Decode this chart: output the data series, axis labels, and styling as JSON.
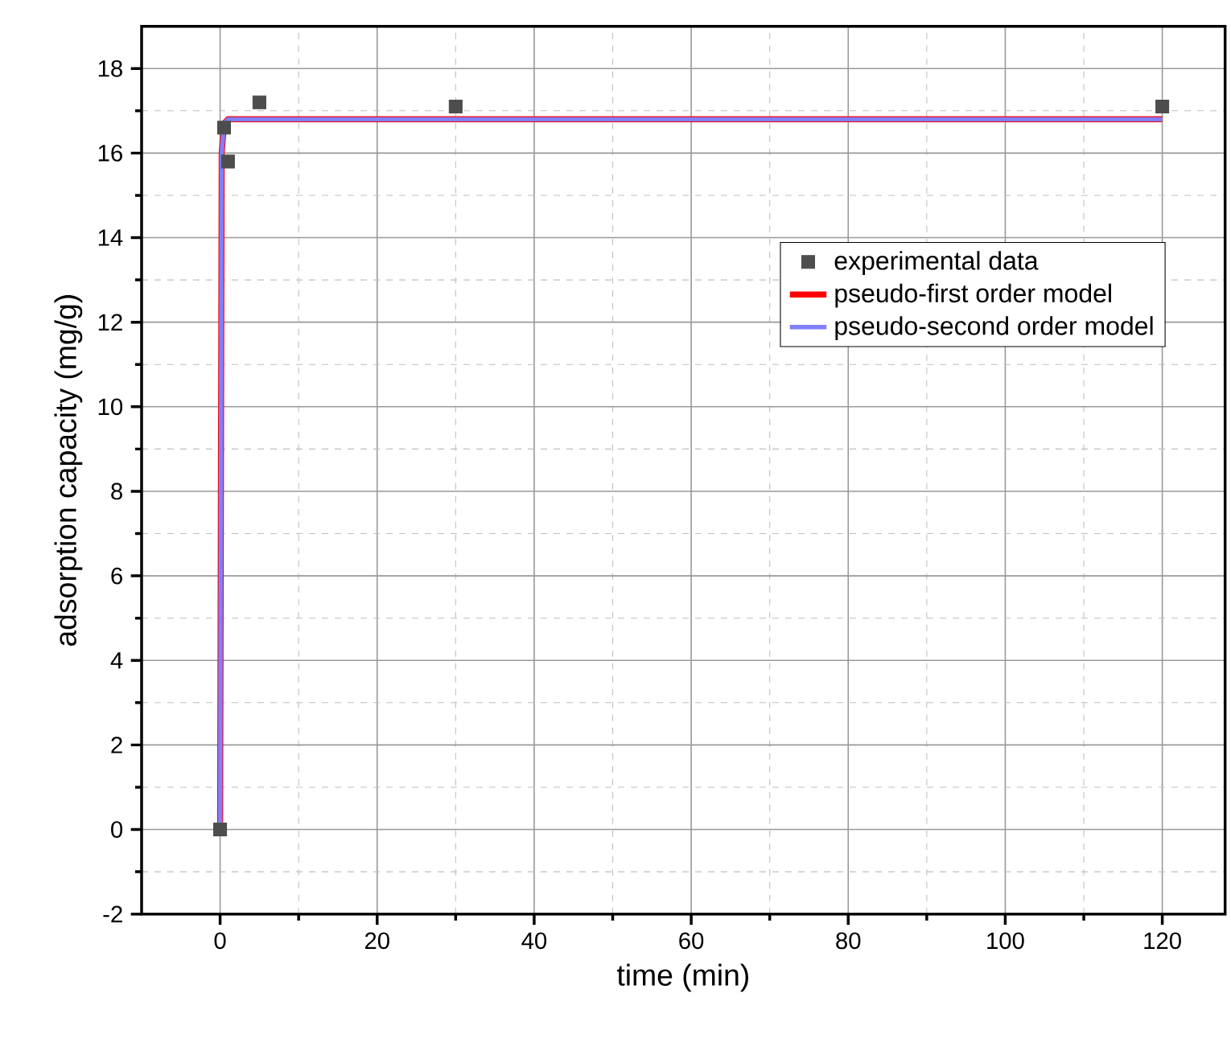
{
  "chart_data": {
    "type": "scatter",
    "xlabel": "time (min)",
    "ylabel": "adsorption capacity (mg/g)",
    "xlim": [
      -10,
      128
    ],
    "ylim": [
      -2,
      19
    ],
    "xticks": [
      0,
      20,
      40,
      60,
      80,
      100,
      120
    ],
    "yticks": [
      -2,
      0,
      2,
      4,
      6,
      8,
      10,
      12,
      14,
      16,
      18
    ],
    "grid": true,
    "legend": "right",
    "series": [
      {
        "name": "experimental data",
        "marker": "square",
        "color": "#4d4d4d",
        "x": [
          0,
          0.5,
          1,
          5,
          30,
          120
        ],
        "values": [
          0,
          16.6,
          15.8,
          17.2,
          17.1,
          17.1
        ]
      },
      {
        "name": "pseudo-first order model",
        "type": "line",
        "marker": "none",
        "color": "#ff0000",
        "x": [
          0,
          0.2,
          0.5,
          1,
          5,
          120
        ],
        "values": [
          0,
          16.0,
          16.7,
          16.8,
          16.8,
          16.8
        ]
      },
      {
        "name": "pseudo-second order model",
        "type": "line",
        "marker": "none",
        "color": "#7f7fff",
        "x": [
          0,
          0.2,
          0.5,
          1,
          5,
          120
        ],
        "values": [
          0,
          16.0,
          16.7,
          16.8,
          16.8,
          16.8
        ]
      }
    ]
  }
}
